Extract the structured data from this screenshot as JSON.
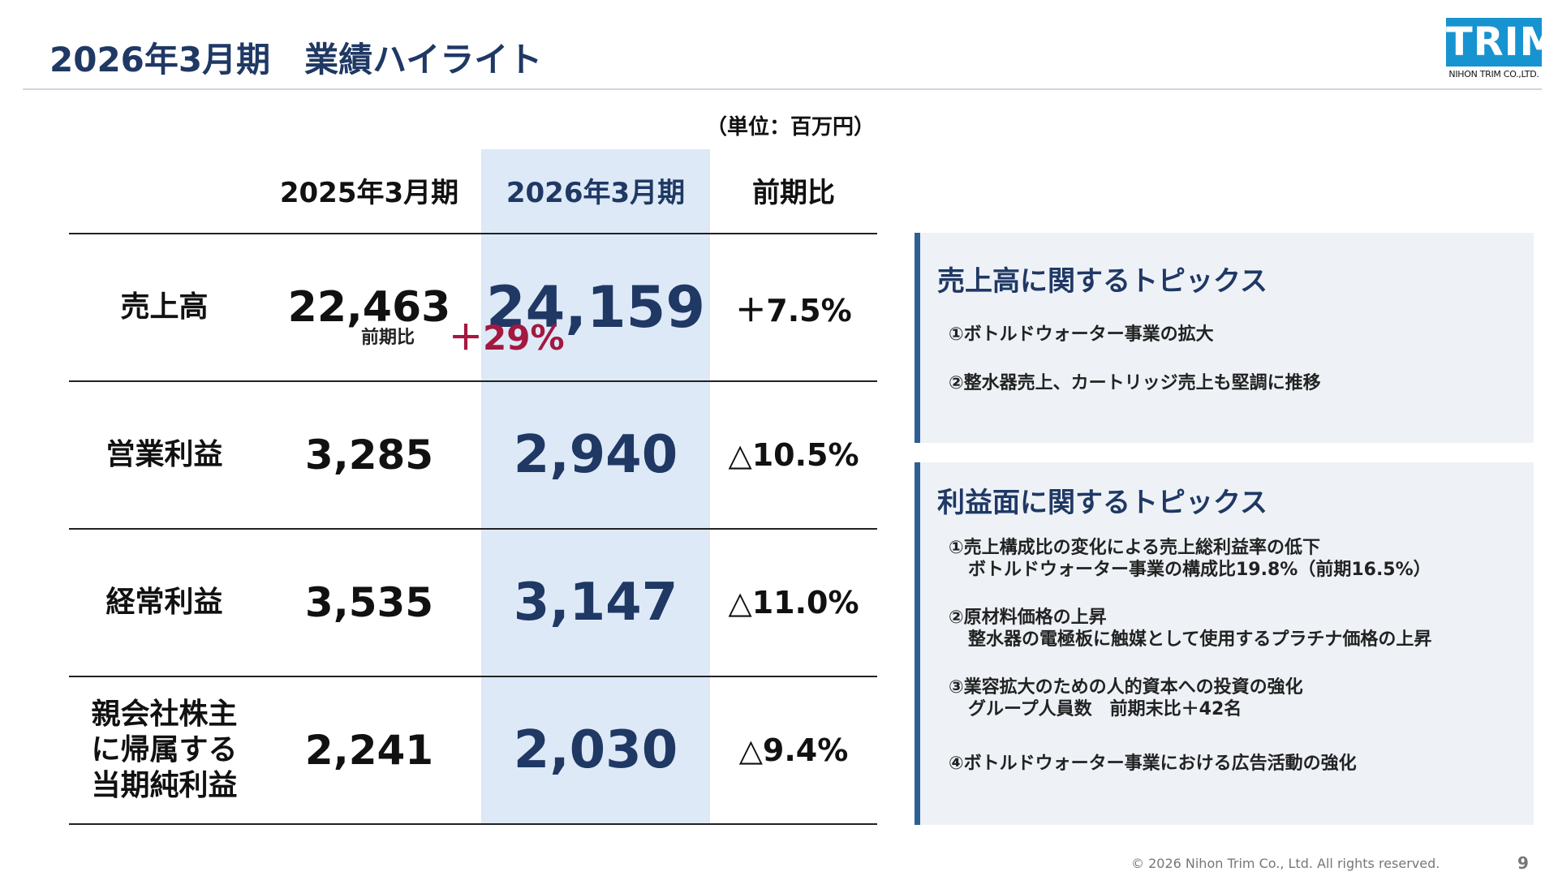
{
  "header": {
    "title": "2026年3月期　業績ハイライト",
    "logo_text": "TRIM",
    "logo_subtext": "NIHON TRIM CO.,LTD."
  },
  "table": {
    "unit_note": "（単位：百万円）",
    "columns": [
      "2025年3月期",
      "2026年3月期",
      "前期比"
    ],
    "rows": [
      {
        "label": "売上高",
        "prev": "22,463",
        "current": "24,159",
        "change": "＋7.5%"
      },
      {
        "label": "営業利益",
        "prev": "3,285",
        "current": "2,940",
        "change": "△10.5%"
      },
      {
        "label": "経常利益",
        "prev": "3,535",
        "current": "3,147",
        "change": "△11.0%"
      },
      {
        "label": "親会社株主に帰属する当期純利益",
        "label_lines": [
          "親会社株主",
          "に帰属する",
          "当期純利益"
        ],
        "prev": "2,241",
        "current": "2,030",
        "change": "△9.4%"
      }
    ]
  },
  "sales_topics": {
    "title": "売上高に関するトピックス",
    "items": [
      {
        "text": "①ボトルドウォーター事業の拡大"
      },
      {
        "text": "②整水器売上、カートリッジ売上も堅調に推移"
      }
    ],
    "change_label": "前期比",
    "change_value": "＋29%"
  },
  "profit_topics": {
    "title": "利益面に関するトピックス",
    "items": [
      {
        "text": "①売上構成比の変化による売上総利益率の低下",
        "sub": "ボトルドウォーター事業の構成比19.8%（前期16.5%）"
      },
      {
        "text": "②原材料価格の上昇",
        "sub": "整水器の電極板に触媒として使用するプラチナ価格の上昇"
      },
      {
        "text": "③業容拡大のための人的資本への投資の強化",
        "sub": "グループ人員数　前期末比＋42名"
      },
      {
        "text": "④ボトルドウォーター事業における広告活動の強化"
      }
    ]
  },
  "footer": {
    "copyright": "© 2026 Nihon Trim Co., Ltd. All rights reserved.",
    "page_number": "9"
  },
  "colors": {
    "title": "#1f3864",
    "highlight_column": "#dde9f6",
    "panel_bg": "#eef2f7",
    "panel_bar": "#2d5f96",
    "accent_red": "#a31940",
    "logo_blue": "#1793d0"
  }
}
